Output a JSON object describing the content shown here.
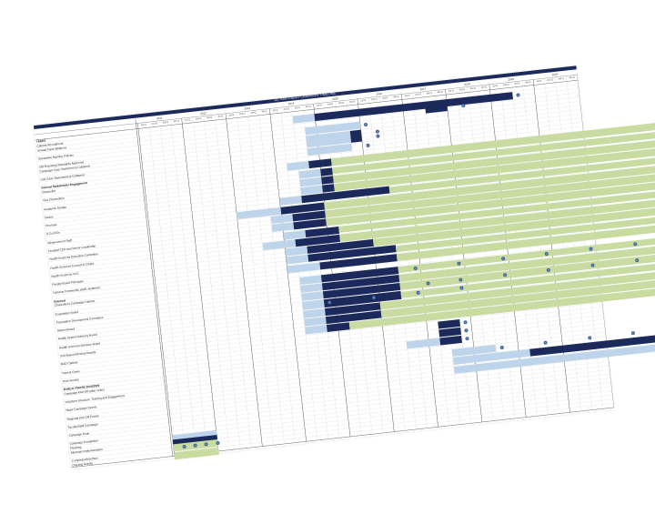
{
  "title": "UC SAN DIEGO CAMPAIGN TIMELINE",
  "years": [
    "2011",
    "2012",
    "2013",
    "2014",
    "2015",
    "2016",
    "2017",
    "2018",
    "2019",
    "2020"
  ],
  "quarter_labels": [
    "1st Q",
    "2nd Q",
    "3rd Q",
    "4th Q"
  ],
  "colors": {
    "light": "#bdd4ea",
    "dark": "#1b2a5b",
    "green": "#c9dba0",
    "dot": "#6f94cd"
  },
  "rows": [
    {
      "label": "TASKS",
      "style": "head",
      "bars": [],
      "dots": []
    },
    {
      "label": "Cabinet Recruitment",
      "bars": [
        [
          "light",
          14,
          16
        ],
        [
          "dark",
          16,
          34
        ]
      ],
      "dots": [
        34
      ]
    },
    {
      "label": "Annual Fund Initiatives",
      "bars": [
        [
          "dark",
          26,
          28
        ]
      ],
      "dots": [
        29
      ]
    },
    {
      "label": "",
      "bars": [],
      "dots": []
    },
    {
      "label": "Streamline Naming Policies",
      "bars": [
        [
          "light",
          15,
          20
        ]
      ],
      "dots": [
        20
      ]
    },
    {
      "label": "",
      "bars": [],
      "dots": []
    },
    {
      "label": "Gift Reporting Standards Approved",
      "bars": [
        [
          "light",
          15,
          19
        ],
        [
          "dark",
          19,
          20
        ]
      ],
      "dots": [
        21
      ]
    },
    {
      "label": "Campaign Case Statement & Collateral",
      "bars": [
        [
          "light",
          15,
          19
        ],
        [
          "dark",
          19,
          20
        ]
      ],
      "dots": [
        21
      ]
    },
    {
      "label": "",
      "bars": [],
      "dots": []
    },
    {
      "label": "Unit Case Statements & Collateral",
      "bars": [
        [
          "light",
          15,
          19
        ]
      ],
      "dots": [
        20
      ]
    },
    {
      "label": "",
      "bars": [],
      "dots": []
    },
    {
      "label": "Internal Stakeholder Engagement",
      "style": "head",
      "bars": [],
      "dots": []
    },
    {
      "label": "Chancellor",
      "bars": [
        [
          "light",
          13,
          15
        ],
        [
          "dark",
          15,
          17
        ],
        [
          "green",
          17,
          57
        ]
      ],
      "dots": [
        57
      ]
    },
    {
      "label": "",
      "bars": [],
      "dots": []
    },
    {
      "label": "Vice Chancellors",
      "bars": [
        [
          "light",
          14,
          16
        ],
        [
          "dark",
          16,
          17
        ],
        [
          "green",
          17,
          57
        ]
      ],
      "dots": [
        57
      ]
    },
    {
      "label": "",
      "bars": [],
      "dots": []
    },
    {
      "label": "Academic Senate",
      "bars": [
        [
          "light",
          14,
          16
        ],
        [
          "dark",
          16,
          17
        ],
        [
          "green",
          17,
          57
        ]
      ],
      "dots": [
        57
      ]
    },
    {
      "label": "",
      "bars": [],
      "dots": []
    },
    {
      "label": "Deans",
      "bars": [
        [
          "light",
          14,
          16
        ],
        [
          "dark",
          16,
          17
        ],
        [
          "green",
          17,
          57
        ]
      ],
      "dots": [
        57
      ]
    },
    {
      "label": "",
      "bars": [],
      "dots": []
    },
    {
      "label": "Provosts",
      "bars": [
        [
          "light",
          12,
          14
        ],
        [
          "dark",
          14,
          22
        ],
        [
          "green",
          22,
          57
        ]
      ],
      "dots": [
        57
      ]
    },
    {
      "label": "",
      "bars": [],
      "dots": []
    },
    {
      "label": "E.D.s/VCs",
      "bars": [
        [
          "light",
          8,
          12
        ],
        [
          "dark",
          12,
          16
        ],
        [
          "green",
          16,
          57
        ]
      ],
      "dots": [
        57
      ]
    },
    {
      "label": "",
      "bars": [],
      "dots": []
    },
    {
      "label": "Advancement Staff",
      "bars": [
        [
          "light",
          11,
          13
        ],
        [
          "dark",
          13,
          16
        ],
        [
          "green",
          16,
          57
        ]
      ],
      "dots": [
        57
      ]
    },
    {
      "label": "",
      "bars": [],
      "dots": []
    },
    {
      "label": "Hospital CEO and Senior Leadership",
      "bars": [
        [
          "light",
          11,
          13
        ],
        [
          "dark",
          13,
          16
        ],
        [
          "green",
          16,
          57
        ]
      ],
      "dots": [
        57
      ]
    },
    {
      "label": "",
      "bars": [],
      "dots": []
    },
    {
      "label": "Health Sciences Executive Committee",
      "bars": [
        [
          "light",
          12,
          14
        ],
        [
          "dark",
          14,
          17
        ],
        [
          "green",
          17,
          57
        ]
      ],
      "dots": [
        57
      ]
    },
    {
      "label": "",
      "bars": [],
      "dots": []
    },
    {
      "label": "Health Sciences Council of Chairs",
      "bars": [
        [
          "light",
          10,
          13
        ],
        [
          "dark",
          13,
          17
        ],
        [
          "green",
          17,
          57
        ]
      ],
      "dots": [
        57
      ]
    },
    {
      "label": "",
      "bars": [],
      "dots": []
    },
    {
      "label": "Health Sciences VCC",
      "bars": [
        [
          "light",
          12,
          14
        ],
        [
          "dark",
          14,
          20
        ],
        [
          "green",
          20,
          57
        ]
      ],
      "dots": [
        57
      ]
    },
    {
      "label": "",
      "bars": [],
      "dots": []
    },
    {
      "label": "Faculty Board Principals",
      "bars": [
        [
          "light",
          12,
          14
        ],
        [
          "dark",
          14,
          22
        ],
        [
          "green",
          22,
          57
        ]
      ],
      "dots": [
        57
      ]
    },
    {
      "label": "",
      "bars": [],
      "dots": []
    },
    {
      "label": "Campus Community (staff, students)",
      "bars": [
        [
          "light",
          12,
          15
        ],
        [
          "dark",
          15,
          22
        ],
        [
          "green",
          22,
          57
        ]
      ],
      "dots": [
        57
      ]
    },
    {
      "label": "",
      "bars": [],
      "dots": []
    },
    {
      "label": "External",
      "style": "head",
      "bars": [],
      "dots": []
    },
    {
      "label": "Chancellor's Campaign Cabinet",
      "bars": [
        [
          "light",
          13,
          15
        ],
        [
          "dark",
          15,
          22
        ],
        [
          "green",
          22,
          57
        ]
      ],
      "dots": [
        23,
        27,
        31,
        35,
        39,
        43,
        47,
        51,
        55,
        59
      ]
    },
    {
      "label": "",
      "bars": [],
      "dots": []
    },
    {
      "label": "Foundation Board",
      "bars": [
        [
          "light",
          13,
          15
        ],
        [
          "dark",
          15,
          22
        ],
        [
          "green",
          22,
          57
        ]
      ],
      "dots": [
        57
      ]
    },
    {
      "label": "",
      "bars": [],
      "dots": []
    },
    {
      "label": "Foundation Development Committee",
      "bars": [
        [
          "light",
          13,
          15
        ],
        [
          "dark",
          15,
          22
        ],
        [
          "green",
          22,
          57
        ]
      ],
      "dots": [
        24,
        27,
        31,
        35,
        39,
        43,
        47,
        51,
        55
      ]
    },
    {
      "label": "",
      "bars": [],
      "dots": []
    },
    {
      "label": "Alumni Board",
      "bars": [
        [
          "light",
          13,
          15
        ],
        [
          "dark",
          15,
          22
        ],
        [
          "green",
          22,
          57
        ]
      ],
      "dots": [
        15,
        19,
        23,
        27,
        57
      ]
    },
    {
      "label": "",
      "bars": [],
      "dots": []
    },
    {
      "label": "Health System Advisory Board",
      "bars": [
        [
          "light",
          13,
          15
        ],
        [
          "dark",
          15,
          20
        ],
        [
          "green",
          20,
          57
        ]
      ],
      "dots": [
        57
      ]
    },
    {
      "label": "",
      "bars": [],
      "dots": []
    },
    {
      "label": "Health Sciences Advisory Board",
      "bars": [
        [
          "light",
          13,
          15
        ],
        [
          "dark",
          15,
          20
        ],
        [
          "green",
          20,
          57
        ]
      ],
      "dots": [
        57
      ]
    },
    {
      "label": "",
      "bars": [],
      "dots": []
    },
    {
      "label": "Unit-Based Advisory Boards",
      "bars": [
        [
          "light",
          13,
          15
        ],
        [
          "dark",
          15,
          17
        ],
        [
          "green",
          17,
          57
        ]
      ],
      "dots": [
        57
      ]
    },
    {
      "label": "",
      "bars": [],
      "dots": []
    },
    {
      "label": "RAD Cabinet",
      "bars": [
        [
          "dark",
          25,
          27
        ]
      ],
      "dots": [
        27
      ]
    },
    {
      "label": "",
      "bars": [],
      "dots": []
    },
    {
      "label": "Town & Gown",
      "bars": [
        [
          "dark",
          25,
          27
        ]
      ],
      "dots": [
        27
      ]
    },
    {
      "label": "",
      "bars": [],
      "dots": []
    },
    {
      "label": "Host Society",
      "bars": [
        [
          "light",
          22,
          25
        ],
        [
          "dark",
          25,
          27
        ]
      ],
      "dots": [
        27
      ]
    },
    {
      "label": "",
      "bars": [],
      "dots": []
    },
    {
      "label": "PUBLIC PHASE 2016/2020",
      "style": "head",
      "bars": [],
      "dots": []
    },
    {
      "label": "Campaign Kick-Off (after order)",
      "bars": [
        [
          "light",
          26,
          30
        ]
      ],
      "dots": [
        30,
        34,
        38,
        42,
        46,
        50,
        54,
        58
      ]
    },
    {
      "label": "",
      "bars": [],
      "dots": []
    },
    {
      "label": "Volunteer Structure, Training and Engagement",
      "bars": [
        [
          "light",
          26,
          33
        ],
        [
          "dark",
          33,
          56
        ]
      ],
      "dots": [
        57
      ]
    },
    {
      "label": "",
      "bars": [],
      "dots": []
    },
    {
      "label": "Major Campaign Events",
      "bars": [
        [
          "light",
          26,
          50
        ],
        [
          "dark",
          50,
          56
        ]
      ],
      "dots": [
        57
      ]
    },
    {
      "label": "",
      "bars": [],
      "dots": []
    },
    {
      "label": "Regional Kick-Off Events",
      "bars": [
        [
          "light",
          53,
          55
        ],
        [
          "dark",
          55,
          57
        ]
      ],
      "dots": [
        58
      ]
    },
    {
      "label": "",
      "bars": [],
      "dots": []
    },
    {
      "label": "Faculty/Staff Campaign",
      "bars": [],
      "dots": []
    },
    {
      "label": "",
      "bars": [],
      "dots": []
    },
    {
      "label": "Campaign Ends",
      "bars": [],
      "dots": []
    },
    {
      "label": "",
      "bars": [],
      "dots": []
    },
    {
      "label": "Campaign Completion",
      "bars": [],
      "dots": []
    },
    {
      "label": "Planning",
      "bars": [
        [
          "light",
          0,
          4
        ]
      ],
      "dots": []
    },
    {
      "label": "Alternate Implementation",
      "bars": [
        [
          "dark",
          0,
          4
        ]
      ],
      "dots": []
    },
    {
      "label": "",
      "bars": [
        [
          "green",
          0,
          4
        ]
      ],
      "dots": [
        0.5,
        1.5,
        2.5,
        3.5
      ]
    },
    {
      "label": "Completion/Interface",
      "bars": [],
      "dots": []
    },
    {
      "label": "Ongoing Activity",
      "bars": [
        [
          "green",
          0,
          4
        ]
      ],
      "dots": []
    }
  ]
}
